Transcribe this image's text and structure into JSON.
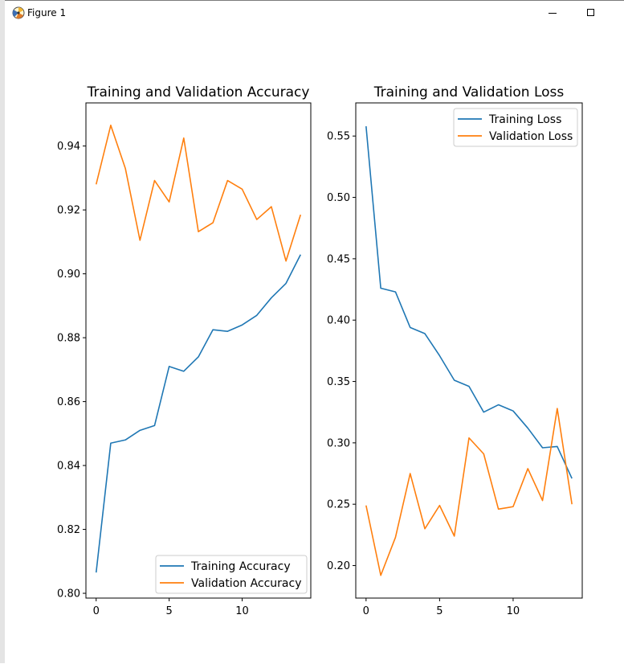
{
  "window": {
    "title": "Figure 1",
    "icon": "matplotlib-figure-icon",
    "controls": [
      "minimize-icon",
      "maximize-icon"
    ]
  },
  "colors": {
    "training": "#1f77b4",
    "validation": "#ff7f0e"
  },
  "chart_data": [
    {
      "type": "line",
      "title": "Training and Validation Accuracy",
      "xlabel": "",
      "ylabel": "",
      "xlim": [
        -0.7,
        14.7
      ],
      "ylim": [
        0.7985,
        0.9535
      ],
      "xticks": [
        0,
        5,
        10
      ],
      "xtick_labels": [
        "0",
        "5",
        "10"
      ],
      "yticks": [
        0.8,
        0.82,
        0.84,
        0.86,
        0.88,
        0.9,
        0.92,
        0.94
      ],
      "ytick_labels": [
        "0.80",
        "0.82",
        "0.84",
        "0.86",
        "0.88",
        "0.90",
        "0.92",
        "0.94"
      ],
      "grid": false,
      "legend_position": "lower-right",
      "x": [
        0,
        1,
        2,
        3,
        4,
        5,
        6,
        7,
        8,
        9,
        10,
        11,
        12,
        13,
        14
      ],
      "series": [
        {
          "name": "Training Accuracy",
          "color": "#1f77b4",
          "values": [
            0.8065,
            0.847,
            0.848,
            0.851,
            0.8525,
            0.871,
            0.8695,
            0.874,
            0.8825,
            0.882,
            0.884,
            0.887,
            0.8925,
            0.897,
            0.906
          ]
        },
        {
          "name": "Validation Accuracy",
          "color": "#ff7f0e",
          "values": [
            0.928,
            0.9465,
            0.933,
            0.9105,
            0.9292,
            0.9225,
            0.9425,
            0.9132,
            0.916,
            0.9292,
            0.9265,
            0.917,
            0.921,
            0.904,
            0.9185
          ]
        }
      ]
    },
    {
      "type": "line",
      "title": "Training and Validation Loss",
      "xlabel": "",
      "ylabel": "",
      "xlim": [
        -0.7,
        14.7
      ],
      "ylim": [
        0.1735,
        0.577
      ],
      "xticks": [
        0,
        5,
        10
      ],
      "xtick_labels": [
        "0",
        "5",
        "10"
      ],
      "yticks": [
        0.2,
        0.25,
        0.3,
        0.35,
        0.4,
        0.45,
        0.5,
        0.55
      ],
      "ytick_labels": [
        "0.20",
        "0.25",
        "0.30",
        "0.35",
        "0.40",
        "0.45",
        "0.50",
        "0.55"
      ],
      "grid": false,
      "legend_position": "upper-right",
      "x": [
        0,
        1,
        2,
        3,
        4,
        5,
        6,
        7,
        8,
        9,
        10,
        11,
        12,
        13,
        14
      ],
      "series": [
        {
          "name": "Training Loss",
          "color": "#1f77b4",
          "values": [
            0.558,
            0.426,
            0.423,
            0.394,
            0.389,
            0.371,
            0.351,
            0.346,
            0.325,
            0.331,
            0.326,
            0.312,
            0.296,
            0.297,
            0.271
          ]
        },
        {
          "name": "Validation Loss",
          "color": "#ff7f0e",
          "values": [
            0.249,
            0.192,
            0.223,
            0.275,
            0.23,
            0.249,
            0.224,
            0.304,
            0.291,
            0.246,
            0.248,
            0.279,
            0.253,
            0.328,
            0.25
          ]
        }
      ]
    }
  ]
}
